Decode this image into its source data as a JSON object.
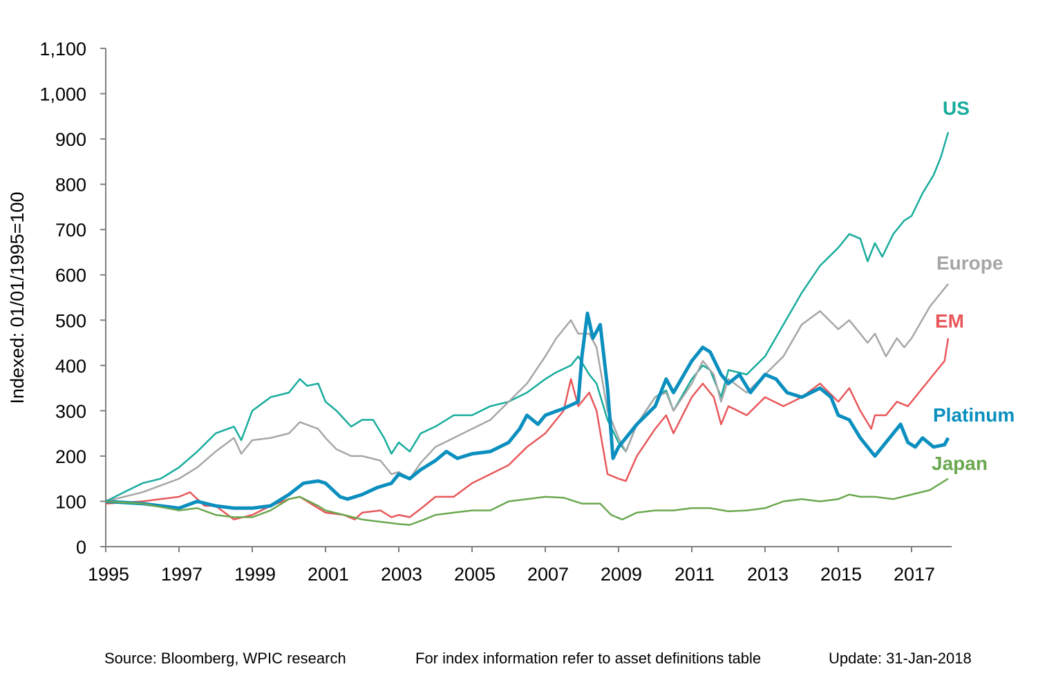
{
  "chart_data": {
    "type": "line",
    "title": "",
    "xlabel": "",
    "ylabel": "Indexed: 01/01/1995=100",
    "xlim": [
      1995,
      2018.1
    ],
    "ylim": [
      0,
      1100
    ],
    "x_ticks": [
      "1995",
      "1997",
      "1999",
      "2001",
      "2003",
      "2005",
      "2007",
      "2009",
      "2011",
      "2013",
      "2015",
      "2017"
    ],
    "y_ticks": [
      "0",
      "100",
      "200",
      "300",
      "400",
      "500",
      "600",
      "700",
      "800",
      "900",
      "1,000",
      "1,100"
    ],
    "grid": false,
    "legend": "inline labels at right end of lines",
    "series": [
      {
        "name": "US",
        "color": "#17ab9d",
        "width": 2.5,
        "x": [
          1995,
          1995.5,
          1996,
          1996.5,
          1997,
          1997.5,
          1998,
          1998.5,
          1998.7,
          1999,
          1999.5,
          2000,
          2000.3,
          2000.5,
          2000.8,
          2001,
          2001.3,
          2001.7,
          2002,
          2002.3,
          2002.6,
          2002.8,
          2003,
          2003.3,
          2003.6,
          2004,
          2004.5,
          2005,
          2005.5,
          2006,
          2006.5,
          2007,
          2007.3,
          2007.7,
          2007.9,
          2008.2,
          2008.4,
          2008.7,
          2009,
          2009.2,
          2009.5,
          2010,
          2010.3,
          2010.5,
          2011,
          2011.3,
          2011.5,
          2011.8,
          2012,
          2012.5,
          2013,
          2013.5,
          2014,
          2014.5,
          2015,
          2015.3,
          2015.6,
          2015.8,
          2016,
          2016.2,
          2016.5,
          2016.8,
          2017,
          2017.3,
          2017.6,
          2017.8,
          2018
        ],
        "y": [
          100,
          120,
          140,
          150,
          175,
          210,
          250,
          265,
          235,
          300,
          330,
          340,
          370,
          355,
          360,
          320,
          300,
          265,
          280,
          280,
          240,
          205,
          230,
          210,
          250,
          265,
          290,
          290,
          310,
          320,
          340,
          370,
          385,
          400,
          420,
          380,
          360,
          280,
          230,
          210,
          270,
          330,
          345,
          300,
          370,
          400,
          390,
          330,
          390,
          380,
          420,
          490,
          560,
          620,
          660,
          690,
          680,
          630,
          670,
          640,
          690,
          720,
          730,
          780,
          820,
          860,
          915
        ]
      },
      {
        "name": "Europe",
        "color": "#a6a6a6",
        "width": 2.5,
        "x": [
          1995,
          1996,
          1997,
          1997.5,
          1998,
          1998.5,
          1998.7,
          1999,
          1999.5,
          2000,
          2000.3,
          2000.8,
          2001,
          2001.3,
          2001.7,
          2002,
          2002.5,
          2002.8,
          2003,
          2003.3,
          2003.6,
          2004,
          2004.5,
          2005,
          2005.5,
          2006,
          2006.5,
          2007,
          2007.3,
          2007.7,
          2007.9,
          2008.2,
          2008.4,
          2008.7,
          2009,
          2009.2,
          2009.5,
          2010,
          2010.3,
          2010.5,
          2011,
          2011.3,
          2011.6,
          2011.8,
          2012,
          2012.5,
          2013,
          2013.5,
          2014,
          2014.5,
          2015,
          2015.3,
          2015.6,
          2015.8,
          2016,
          2016.3,
          2016.6,
          2016.8,
          2017,
          2017.5,
          2017.8,
          2018
        ],
        "y": [
          100,
          120,
          150,
          175,
          210,
          240,
          205,
          235,
          240,
          250,
          275,
          260,
          240,
          215,
          200,
          200,
          190,
          160,
          165,
          150,
          185,
          220,
          240,
          260,
          280,
          320,
          360,
          420,
          460,
          500,
          470,
          470,
          440,
          300,
          240,
          210,
          270,
          330,
          340,
          300,
          360,
          410,
          380,
          320,
          370,
          340,
          380,
          420,
          490,
          520,
          480,
          500,
          470,
          450,
          470,
          420,
          460,
          440,
          460,
          530,
          560,
          580
        ]
      },
      {
        "name": "EM",
        "color": "#e8575a",
        "width": 2.5,
        "x": [
          1995,
          1996,
          1997,
          1997.3,
          1997.7,
          1998,
          1998.5,
          1999,
          1999.5,
          2000,
          2000.3,
          2000.7,
          2001,
          2001.5,
          2001.8,
          2002,
          2002.5,
          2002.8,
          2003,
          2003.3,
          2003.7,
          2004,
          2004.5,
          2005,
          2005.5,
          2006,
          2006.5,
          2007,
          2007.5,
          2007.7,
          2007.9,
          2008.2,
          2008.4,
          2008.7,
          2009,
          2009.2,
          2009.5,
          2010,
          2010.3,
          2010.5,
          2011,
          2011.3,
          2011.6,
          2011.8,
          2012,
          2012.5,
          2013,
          2013.5,
          2014,
          2014.5,
          2015,
          2015.3,
          2015.6,
          2015.9,
          2016,
          2016.3,
          2016.6,
          2016.9,
          2017.2,
          2017.6,
          2017.9,
          2018
        ],
        "y": [
          95,
          100,
          110,
          120,
          90,
          90,
          60,
          70,
          90,
          105,
          110,
          90,
          75,
          70,
          60,
          75,
          80,
          65,
          70,
          65,
          90,
          110,
          110,
          140,
          160,
          180,
          220,
          250,
          300,
          370,
          310,
          340,
          300,
          160,
          150,
          145,
          200,
          260,
          290,
          250,
          330,
          360,
          330,
          270,
          310,
          290,
          330,
          310,
          330,
          360,
          320,
          350,
          300,
          260,
          290,
          290,
          320,
          310,
          340,
          380,
          410,
          460
        ]
      },
      {
        "name": "Platinum",
        "color": "#0a8fbf",
        "width": 5,
        "x": [
          1995,
          1996,
          1997,
          1997.5,
          1998,
          1998.5,
          1999,
          1999.5,
          2000,
          2000.4,
          2000.8,
          2001,
          2001.4,
          2001.6,
          2002,
          2002.4,
          2002.8,
          2003,
          2003.3,
          2003.6,
          2004,
          2004.3,
          2004.6,
          2005,
          2005.5,
          2006,
          2006.3,
          2006.5,
          2006.8,
          2007,
          2007.5,
          2007.9,
          2008,
          2008.15,
          2008.3,
          2008.5,
          2008.7,
          2008.85,
          2009,
          2009.5,
          2010,
          2010.3,
          2010.5,
          2011,
          2011.3,
          2011.5,
          2011.8,
          2012,
          2012.3,
          2012.6,
          2013,
          2013.3,
          2013.6,
          2014,
          2014.5,
          2014.8,
          2015,
          2015.3,
          2015.6,
          2015.9,
          2016,
          2016.3,
          2016.5,
          2016.7,
          2016.9,
          2017.1,
          2017.3,
          2017.6,
          2017.9,
          2018
        ],
        "y": [
          100,
          95,
          85,
          100,
          90,
          85,
          85,
          90,
          115,
          140,
          145,
          140,
          110,
          105,
          115,
          130,
          140,
          160,
          150,
          170,
          190,
          210,
          195,
          205,
          210,
          230,
          260,
          290,
          270,
          290,
          305,
          320,
          420,
          515,
          460,
          490,
          350,
          195,
          220,
          270,
          310,
          370,
          340,
          410,
          440,
          430,
          380,
          360,
          380,
          340,
          380,
          370,
          340,
          330,
          350,
          330,
          290,
          280,
          240,
          210,
          200,
          230,
          250,
          270,
          230,
          220,
          240,
          220,
          225,
          240
        ]
      },
      {
        "name": "Japan",
        "color": "#6aa84f",
        "width": 2.5,
        "x": [
          1995,
          1996,
          1997,
          1997.5,
          1998,
          1998.5,
          1999,
          1999.5,
          2000,
          2000.3,
          2000.8,
          2001,
          2001.5,
          2002,
          2002.5,
          2003,
          2003.3,
          2003.7,
          2004,
          2004.5,
          2005,
          2005.5,
          2006,
          2006.5,
          2007,
          2007.5,
          2008,
          2008.5,
          2008.8,
          2009.1,
          2009.5,
          2010,
          2010.5,
          2011,
          2011.5,
          2012,
          2012.5,
          2013,
          2013.5,
          2014,
          2014.5,
          2015,
          2015.3,
          2015.6,
          2016,
          2016.5,
          2017,
          2017.5,
          2018
        ],
        "y": [
          100,
          95,
          80,
          85,
          70,
          65,
          65,
          80,
          105,
          110,
          90,
          80,
          70,
          60,
          55,
          50,
          48,
          60,
          70,
          75,
          80,
          80,
          100,
          105,
          110,
          108,
          95,
          95,
          70,
          60,
          75,
          80,
          80,
          85,
          85,
          78,
          80,
          85,
          100,
          105,
          100,
          105,
          115,
          110,
          110,
          105,
          115,
          125,
          150
        ]
      }
    ]
  },
  "footer": {
    "source": "Source: Bloomberg, WPIC research",
    "note": "For index information refer to asset definitions table",
    "update": "Update: 31-Jan-2018"
  }
}
